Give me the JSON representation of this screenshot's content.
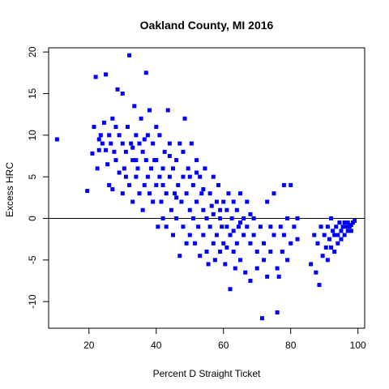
{
  "chart_data": {
    "type": "scatter",
    "title": "Oakland County, MI 2016",
    "xlabel": "Percent D Straight Ticket",
    "ylabel": "Excess HRC",
    "xlim": [
      8,
      102
    ],
    "ylim": [
      -13.2,
      20.5
    ],
    "x_ticks": [
      20,
      40,
      60,
      80,
      100
    ],
    "y_ticks": [
      -10,
      -5,
      0,
      5,
      10,
      15,
      20
    ],
    "reference_line_y": 0,
    "grid": false,
    "legend": "none",
    "marker": "square",
    "color": "#0000ff",
    "points": [
      [
        10.5,
        9.5
      ],
      [
        19.5,
        3.3
      ],
      [
        21,
        7.8
      ],
      [
        21.5,
        11
      ],
      [
        22,
        17
      ],
      [
        22.5,
        6
      ],
      [
        23,
        8.2
      ],
      [
        23.5,
        10
      ],
      [
        24,
        9
      ],
      [
        24.5,
        11.5
      ],
      [
        25,
        17.3
      ],
      [
        25,
        8.2
      ],
      [
        25.5,
        6.5
      ],
      [
        26,
        4
      ],
      [
        26,
        10
      ],
      [
        27,
        12
      ],
      [
        27,
        3.5
      ],
      [
        27.5,
        8
      ],
      [
        28,
        7
      ],
      [
        28.5,
        15.5
      ],
      [
        29,
        10
      ],
      [
        29,
        5.5
      ],
      [
        30,
        15
      ],
      [
        30,
        9
      ],
      [
        30,
        3
      ],
      [
        31,
        8
      ],
      [
        31,
        5
      ],
      [
        31.5,
        11
      ],
      [
        32,
        19.6
      ],
      [
        32,
        4
      ],
      [
        32.5,
        9
      ],
      [
        33,
        7
      ],
      [
        33,
        2
      ],
      [
        33.5,
        13.5
      ],
      [
        34,
        10
      ],
      [
        34,
        5
      ],
      [
        34.5,
        6
      ],
      [
        35,
        9
      ],
      [
        35,
        3
      ],
      [
        35.5,
        12
      ],
      [
        36,
        8
      ],
      [
        36,
        1
      ],
      [
        36.5,
        4
      ],
      [
        37,
        17.5
      ],
      [
        37,
        7
      ],
      [
        37.5,
        10
      ],
      [
        38,
        13
      ],
      [
        38,
        3
      ],
      [
        38.5,
        6
      ],
      [
        39,
        9
      ],
      [
        39,
        2
      ],
      [
        40,
        7
      ],
      [
        40,
        4
      ],
      [
        40.5,
        -1
      ],
      [
        41,
        5
      ],
      [
        41,
        10
      ],
      [
        41.5,
        2
      ],
      [
        42,
        6
      ],
      [
        42,
        0
      ],
      [
        42.5,
        8
      ],
      [
        43,
        3
      ],
      [
        43,
        -1
      ],
      [
        43.5,
        13
      ],
      [
        44,
        5
      ],
      [
        44,
        9
      ],
      [
        44.5,
        1
      ],
      [
        45,
        6
      ],
      [
        45,
        -2
      ],
      [
        45.5,
        3
      ],
      [
        46,
        7
      ],
      [
        46,
        0
      ],
      [
        46.5,
        4
      ],
      [
        47,
        9
      ],
      [
        47,
        -4.5
      ],
      [
        47.5,
        2
      ],
      [
        48,
        5
      ],
      [
        48,
        -1
      ],
      [
        48.5,
        12
      ],
      [
        49,
        3
      ],
      [
        49,
        -3
      ],
      [
        49.5,
        6
      ],
      [
        50,
        1
      ],
      [
        50,
        -2
      ],
      [
        50.5,
        9
      ],
      [
        51,
        4
      ],
      [
        51,
        0
      ],
      [
        51.5,
        -3
      ],
      [
        52,
        7
      ],
      [
        52,
        2
      ],
      [
        52.5,
        -1
      ],
      [
        53,
        5
      ],
      [
        53,
        -4.5
      ],
      [
        53.5,
        3
      ],
      [
        54,
        1
      ],
      [
        54,
        -2
      ],
      [
        54.5,
        6
      ],
      [
        55,
        0
      ],
      [
        55,
        -4
      ],
      [
        55.5,
        -5.5
      ],
      [
        56,
        3
      ],
      [
        56,
        -1
      ],
      [
        56.5,
        1.5
      ],
      [
        57,
        5
      ],
      [
        57,
        -3
      ],
      [
        57.5,
        -5
      ],
      [
        58,
        2
      ],
      [
        58,
        -2
      ],
      [
        58.5,
        4
      ],
      [
        59,
        0
      ],
      [
        59,
        -4
      ],
      [
        59.5,
        -1
      ],
      [
        60,
        2
      ],
      [
        60,
        -3
      ],
      [
        60.5,
        -5.5
      ],
      [
        61,
        1
      ],
      [
        61,
        -1
      ],
      [
        61.5,
        3
      ],
      [
        62,
        -2
      ],
      [
        62,
        -8.5
      ],
      [
        62.5,
        0
      ],
      [
        63,
        -4
      ],
      [
        63,
        2
      ],
      [
        63.5,
        -6
      ],
      [
        64,
        1
      ],
      [
        64,
        -3
      ],
      [
        64.5,
        -1
      ],
      [
        65,
        3
      ],
      [
        65,
        -5
      ],
      [
        66,
        0
      ],
      [
        66,
        -2
      ],
      [
        66.5,
        -6.5
      ],
      [
        67,
        -1
      ],
      [
        67,
        2
      ],
      [
        68,
        -3
      ],
      [
        68,
        -7.5
      ],
      [
        69,
        -2
      ],
      [
        69,
        0
      ],
      [
        70,
        -4
      ],
      [
        70,
        -6
      ],
      [
        71,
        -1
      ],
      [
        71.5,
        -12
      ],
      [
        72,
        -3
      ],
      [
        72,
        -5
      ],
      [
        73,
        2
      ],
      [
        73,
        -7
      ],
      [
        74,
        -1
      ],
      [
        74,
        -4
      ],
      [
        75,
        -2
      ],
      [
        75,
        3
      ],
      [
        76,
        -6
      ],
      [
        76,
        -11.3
      ],
      [
        76.5,
        -7
      ],
      [
        77,
        -1
      ],
      [
        77.5,
        -4
      ],
      [
        78,
        -2
      ],
      [
        78,
        4
      ],
      [
        79,
        -5
      ],
      [
        79,
        0
      ],
      [
        80,
        -3
      ],
      [
        80,
        4
      ],
      [
        81,
        -1
      ],
      [
        82,
        -2.5
      ],
      [
        82,
        0
      ],
      [
        86,
        -5.5
      ],
      [
        87,
        -2
      ],
      [
        87.5,
        -6.5
      ],
      [
        88,
        -3
      ],
      [
        88.5,
        -8
      ],
      [
        89,
        -1
      ],
      [
        89.5,
        -4.5
      ],
      [
        90,
        -2
      ],
      [
        90.5,
        -3.5
      ],
      [
        91,
        -1
      ],
      [
        91,
        -5
      ],
      [
        91.5,
        -2.5
      ],
      [
        92,
        0
      ],
      [
        92,
        -3.5
      ],
      [
        92.5,
        -1.5
      ],
      [
        93,
        -2
      ],
      [
        93,
        -4
      ],
      [
        93.5,
        -1
      ],
      [
        94,
        -2
      ],
      [
        94,
        -3
      ],
      [
        94.5,
        -0.5
      ],
      [
        95,
        -1.5
      ],
      [
        95,
        -2.5
      ],
      [
        95.5,
        -1
      ],
      [
        96,
        -2
      ],
      [
        96,
        -0.5
      ],
      [
        96.5,
        -1
      ],
      [
        97,
        -1.5
      ],
      [
        97,
        -0.5
      ],
      [
        97.5,
        -1
      ],
      [
        98,
        -1.5
      ],
      [
        98,
        -0.8
      ],
      [
        98.5,
        -0.5
      ],
      [
        99,
        -0.3
      ],
      [
        23,
        9.5
      ],
      [
        26.5,
        9
      ],
      [
        28,
        11
      ],
      [
        30.5,
        6
      ],
      [
        33,
        8.5
      ],
      [
        34,
        7
      ],
      [
        36.5,
        9.5
      ],
      [
        37.5,
        5
      ],
      [
        39.5,
        7
      ],
      [
        40,
        11
      ],
      [
        42,
        4
      ],
      [
        44,
        7.5
      ],
      [
        46,
        2.5
      ],
      [
        48,
        8
      ],
      [
        50,
        5
      ],
      [
        52,
        5.5
      ],
      [
        54,
        3.5
      ],
      [
        57,
        0.5
      ],
      [
        59,
        1
      ],
      [
        61,
        -3.5
      ],
      [
        63,
        -1.5
      ],
      [
        65,
        -0.5
      ],
      [
        68,
        0.5
      ]
    ]
  }
}
